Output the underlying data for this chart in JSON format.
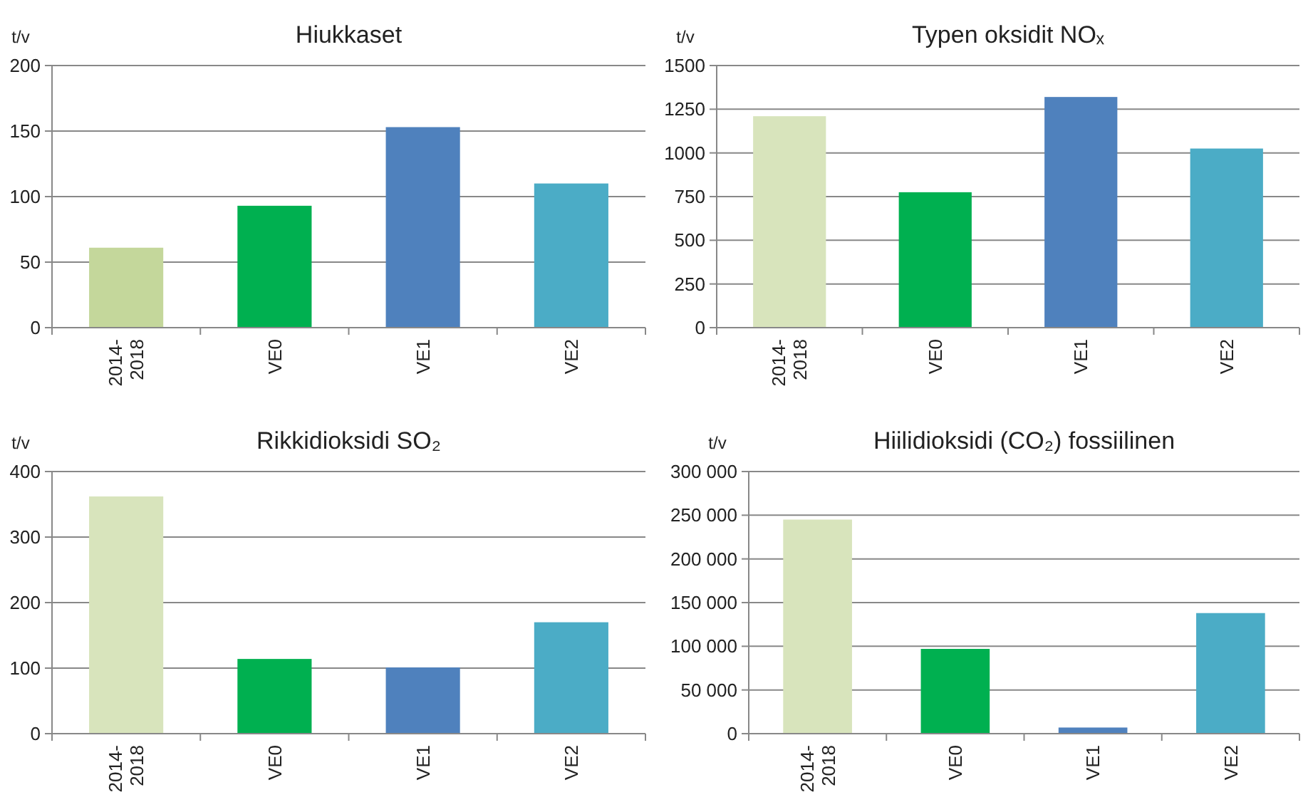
{
  "chart_data": [
    {
      "type": "bar",
      "title": "Hiukkaset",
      "ylabel": "t/v",
      "categories": [
        "2014-2018",
        "VE0",
        "VE1",
        "VE2"
      ],
      "values": [
        61,
        93,
        153,
        110
      ],
      "colors": [
        "#c4d79b",
        "#00b050",
        "#4f81bd",
        "#4bacc6"
      ],
      "ylim": [
        0,
        200
      ],
      "yticks": [
        0,
        50,
        100,
        150,
        200
      ],
      "grid": "y"
    },
    {
      "type": "bar",
      "title": "Typen oksidit NOₓ",
      "ylabel": "t/v",
      "categories": [
        "2014-2018",
        "VE0",
        "VE1",
        "VE2"
      ],
      "values": [
        1210,
        775,
        1320,
        1025
      ],
      "colors": [
        "#d8e4bc",
        "#00b050",
        "#4f81bd",
        "#4bacc6"
      ],
      "ylim": [
        0,
        1500
      ],
      "yticks": [
        0,
        250,
        500,
        750,
        1000,
        1250,
        1500
      ],
      "grid": "y"
    },
    {
      "type": "bar",
      "title": "Rikkidioksidi SO₂",
      "ylabel": "t/v",
      "categories": [
        "2014-2018",
        "VE0",
        "VE1",
        "VE2"
      ],
      "values": [
        362,
        114,
        101,
        170
      ],
      "colors": [
        "#d8e4bc",
        "#00b050",
        "#4f81bd",
        "#4bacc6"
      ],
      "ylim": [
        0,
        400
      ],
      "yticks": [
        0,
        100,
        200,
        300,
        400
      ],
      "grid": "y"
    },
    {
      "type": "bar",
      "title": "Hiilidioksidi (CO₂) fossiilinen",
      "ylabel": "t/v",
      "categories": [
        "2014-2018",
        "VE0",
        "VE1",
        "VE2"
      ],
      "values": [
        245000,
        97000,
        7000,
        138000
      ],
      "colors": [
        "#d8e4bc",
        "#00b050",
        "#4f81bd",
        "#4bacc6"
      ],
      "ylim": [
        0,
        300000
      ],
      "yticks": [
        0,
        {
          "value": 50000,
          "label": "50 000"
        },
        {
          "value": 100000,
          "label": "100 000"
        },
        {
          "value": 150000,
          "label": "150 000"
        },
        {
          "value": 200000,
          "label": "200 000"
        },
        {
          "value": 250000,
          "label": "250 000"
        },
        {
          "value": 300000,
          "label": "300 000"
        }
      ],
      "grid": "y"
    }
  ]
}
